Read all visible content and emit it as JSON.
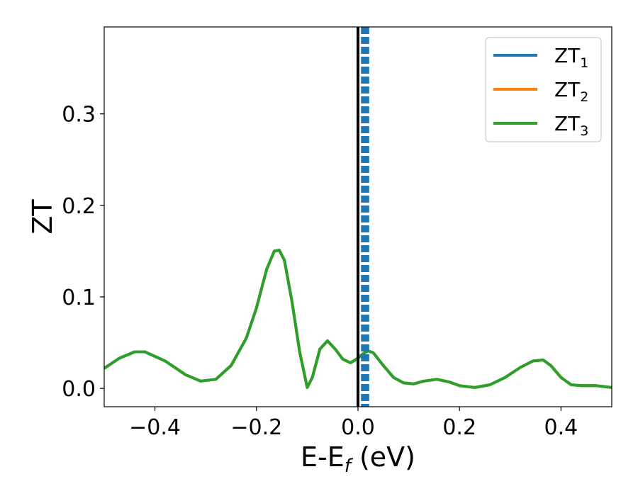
{
  "chart_data": {
    "type": "line",
    "xlabel": {
      "main": "E-E",
      "sub": "f",
      "unit": " (eV)"
    },
    "ylabel": "ZT",
    "xlim": [
      -0.5,
      0.5
    ],
    "ylim": [
      -0.02,
      0.395
    ],
    "x_ticks": [
      -0.4,
      -0.2,
      0.0,
      0.2,
      0.4
    ],
    "x_tick_labels": [
      "−0.4",
      "−0.2",
      "0.0",
      "0.2",
      "0.4"
    ],
    "y_ticks": [
      0.0,
      0.1,
      0.2,
      0.3
    ],
    "y_tick_labels": [
      "0.0",
      "0.1",
      "0.2",
      "0.3"
    ],
    "legend_position": "top-right",
    "grid": false,
    "colors": {
      "ZT1": "#1f77b4",
      "ZT2": "#ff7f0e",
      "ZT3": "#2ca02c",
      "fermi": "#000000"
    },
    "fermi_line_x": 0.0,
    "dashed_lines_x": [
      0.008,
      0.011,
      0.014,
      0.017,
      0.02
    ],
    "series": [
      {
        "name_main": "ZT",
        "name_sub": "1",
        "color": "#1f77b4",
        "x": [
          -0.5,
          -0.47,
          -0.44,
          -0.42,
          -0.38,
          -0.34,
          -0.31,
          -0.28,
          -0.25,
          -0.22,
          -0.2,
          -0.18,
          -0.165,
          -0.155,
          -0.145,
          -0.13,
          -0.115,
          -0.1,
          -0.09,
          -0.075,
          -0.06,
          -0.045,
          -0.03,
          -0.015,
          0.0,
          0.01,
          0.02,
          0.03,
          0.05,
          0.07,
          0.09,
          0.11,
          0.13,
          0.155,
          0.18,
          0.2,
          0.23,
          0.26,
          0.29,
          0.32,
          0.345,
          0.365,
          0.38,
          0.4,
          0.42,
          0.44,
          0.47,
          0.5
        ],
        "y": [
          0.022,
          0.033,
          0.04,
          0.04,
          0.03,
          0.015,
          0.008,
          0.01,
          0.025,
          0.055,
          0.088,
          0.13,
          0.15,
          0.151,
          0.14,
          0.095,
          0.04,
          0.001,
          0.012,
          0.043,
          0.052,
          0.043,
          0.032,
          0.028,
          0.033,
          0.038,
          0.041,
          0.039,
          0.025,
          0.012,
          0.006,
          0.005,
          0.008,
          0.01,
          0.007,
          0.003,
          0.001,
          0.004,
          0.012,
          0.023,
          0.03,
          0.031,
          0.025,
          0.012,
          0.004,
          0.003,
          0.003,
          0.001
        ]
      },
      {
        "name_main": "ZT",
        "name_sub": "2",
        "color": "#ff7f0e",
        "x": [
          -0.5,
          -0.47,
          -0.44,
          -0.42,
          -0.38,
          -0.34,
          -0.31,
          -0.28,
          -0.25,
          -0.22,
          -0.2,
          -0.18,
          -0.165,
          -0.155,
          -0.145,
          -0.13,
          -0.115,
          -0.1,
          -0.09,
          -0.075,
          -0.06,
          -0.045,
          -0.03,
          -0.015,
          0.0,
          0.01,
          0.02,
          0.03,
          0.05,
          0.07,
          0.09,
          0.11,
          0.13,
          0.155,
          0.18,
          0.2,
          0.23,
          0.26,
          0.29,
          0.32,
          0.345,
          0.365,
          0.38,
          0.4,
          0.42,
          0.44,
          0.47,
          0.5
        ],
        "y": [
          0.022,
          0.033,
          0.04,
          0.04,
          0.03,
          0.015,
          0.008,
          0.01,
          0.025,
          0.055,
          0.088,
          0.13,
          0.15,
          0.151,
          0.14,
          0.095,
          0.04,
          0.001,
          0.012,
          0.043,
          0.052,
          0.043,
          0.032,
          0.028,
          0.033,
          0.038,
          0.041,
          0.039,
          0.025,
          0.012,
          0.006,
          0.005,
          0.008,
          0.01,
          0.007,
          0.003,
          0.001,
          0.004,
          0.012,
          0.023,
          0.03,
          0.031,
          0.025,
          0.012,
          0.004,
          0.003,
          0.003,
          0.001
        ]
      },
      {
        "name_main": "ZT",
        "name_sub": "3",
        "color": "#2ca02c",
        "x": [
          -0.5,
          -0.47,
          -0.44,
          -0.42,
          -0.38,
          -0.34,
          -0.31,
          -0.28,
          -0.25,
          -0.22,
          -0.2,
          -0.18,
          -0.165,
          -0.155,
          -0.145,
          -0.13,
          -0.115,
          -0.1,
          -0.09,
          -0.075,
          -0.06,
          -0.045,
          -0.03,
          -0.015,
          0.0,
          0.01,
          0.02,
          0.03,
          0.05,
          0.07,
          0.09,
          0.11,
          0.13,
          0.155,
          0.18,
          0.2,
          0.23,
          0.26,
          0.29,
          0.32,
          0.345,
          0.365,
          0.38,
          0.4,
          0.42,
          0.44,
          0.47,
          0.5
        ],
        "y": [
          0.022,
          0.033,
          0.04,
          0.04,
          0.03,
          0.015,
          0.008,
          0.01,
          0.025,
          0.055,
          0.088,
          0.13,
          0.15,
          0.151,
          0.14,
          0.095,
          0.04,
          0.001,
          0.012,
          0.043,
          0.052,
          0.043,
          0.032,
          0.028,
          0.033,
          0.038,
          0.041,
          0.039,
          0.025,
          0.012,
          0.006,
          0.005,
          0.008,
          0.01,
          0.007,
          0.003,
          0.001,
          0.004,
          0.012,
          0.023,
          0.03,
          0.031,
          0.025,
          0.012,
          0.004,
          0.003,
          0.003,
          0.001
        ]
      }
    ]
  }
}
